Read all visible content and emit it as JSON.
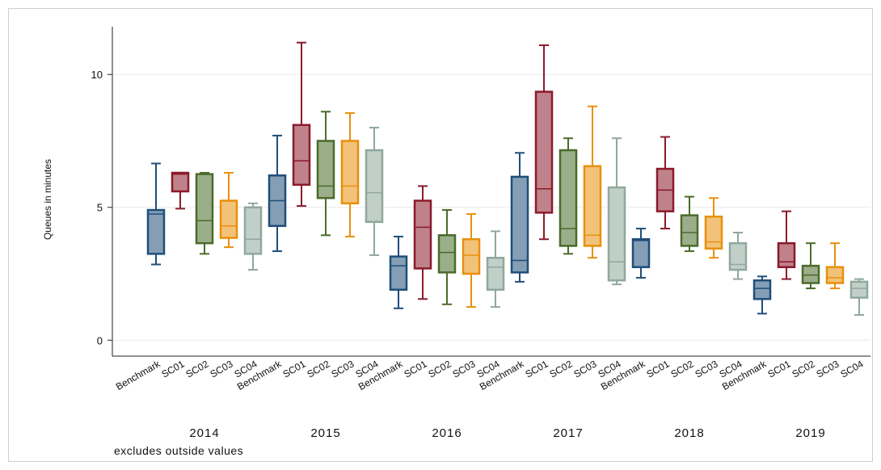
{
  "chart_data": {
    "type": "box",
    "ylabel": "Queues in minutes",
    "note": "excludes outside values",
    "ylim": [
      -0.6,
      11.8
    ],
    "yticks": [
      0,
      5,
      10
    ],
    "grid": true,
    "categories": [
      "Benchmark",
      "SC01",
      "SC02",
      "SC03",
      "SC04"
    ],
    "colors": {
      "Benchmark": "#1f4e79",
      "SC01": "#8b1a2b",
      "SC02": "#4a6b2a",
      "SC03": "#e8900c",
      "SC04": "#8fa89c"
    },
    "groups": [
      {
        "label": "2014",
        "boxes": [
          {
            "name": "Benchmark",
            "min": 2.85,
            "q1": 3.25,
            "median": 4.75,
            "q3": 4.9,
            "max": 6.65
          },
          {
            "name": "SC01",
            "min": 4.95,
            "q1": 5.6,
            "median": 6.25,
            "q3": 6.3,
            "max": 6.3
          },
          {
            "name": "SC02",
            "min": 3.25,
            "q1": 3.65,
            "median": 4.5,
            "q3": 6.25,
            "max": 6.3
          },
          {
            "name": "SC03",
            "min": 3.5,
            "q1": 3.85,
            "median": 4.3,
            "q3": 5.25,
            "max": 6.3
          },
          {
            "name": "SC04",
            "min": 2.65,
            "q1": 3.25,
            "median": 3.8,
            "q3": 5.0,
            "max": 5.15
          }
        ]
      },
      {
        "label": "2015",
        "boxes": [
          {
            "name": "Benchmark",
            "min": 3.35,
            "q1": 4.3,
            "median": 5.25,
            "q3": 6.2,
            "max": 7.7
          },
          {
            "name": "SC01",
            "min": 5.05,
            "q1": 5.85,
            "median": 6.75,
            "q3": 8.1,
            "max": 11.2
          },
          {
            "name": "SC02",
            "min": 3.95,
            "q1": 5.35,
            "median": 5.8,
            "q3": 7.5,
            "max": 8.6
          },
          {
            "name": "SC03",
            "min": 3.9,
            "q1": 5.15,
            "median": 5.8,
            "q3": 7.5,
            "max": 8.55
          },
          {
            "name": "SC04",
            "min": 3.2,
            "q1": 4.45,
            "median": 5.55,
            "q3": 7.15,
            "max": 8.0
          }
        ]
      },
      {
        "label": "2016",
        "boxes": [
          {
            "name": "Benchmark",
            "min": 1.2,
            "q1": 1.9,
            "median": 2.8,
            "q3": 3.15,
            "max": 3.9
          },
          {
            "name": "SC01",
            "min": 1.55,
            "q1": 2.7,
            "median": 4.25,
            "q3": 5.25,
            "max": 5.8
          },
          {
            "name": "SC02",
            "min": 1.35,
            "q1": 2.55,
            "median": 3.3,
            "q3": 3.95,
            "max": 4.9
          },
          {
            "name": "SC03",
            "min": 1.25,
            "q1": 2.5,
            "median": 3.2,
            "q3": 3.8,
            "max": 4.75
          },
          {
            "name": "SC04",
            "min": 1.25,
            "q1": 1.9,
            "median": 2.75,
            "q3": 3.1,
            "max": 4.1
          }
        ]
      },
      {
        "label": "2017",
        "boxes": [
          {
            "name": "Benchmark",
            "min": 2.2,
            "q1": 2.55,
            "median": 3.0,
            "q3": 6.15,
            "max": 7.05
          },
          {
            "name": "SC01",
            "min": 3.8,
            "q1": 4.8,
            "median": 5.7,
            "q3": 9.35,
            "max": 11.1
          },
          {
            "name": "SC02",
            "min": 3.25,
            "q1": 3.55,
            "median": 4.2,
            "q3": 7.15,
            "max": 7.6
          },
          {
            "name": "SC03",
            "min": 3.1,
            "q1": 3.55,
            "median": 3.95,
            "q3": 6.55,
            "max": 8.8
          },
          {
            "name": "SC04",
            "min": 2.1,
            "q1": 2.25,
            "median": 2.95,
            "q3": 5.75,
            "max": 7.6
          }
        ]
      },
      {
        "label": "2018",
        "boxes": [
          {
            "name": "Benchmark",
            "min": 2.35,
            "q1": 2.75,
            "median": 3.75,
            "q3": 3.8,
            "max": 4.2
          },
          {
            "name": "SC01",
            "min": 4.2,
            "q1": 4.85,
            "median": 5.65,
            "q3": 6.45,
            "max": 7.65
          },
          {
            "name": "SC02",
            "min": 3.35,
            "q1": 3.55,
            "median": 4.05,
            "q3": 4.7,
            "max": 5.4
          },
          {
            "name": "SC03",
            "min": 3.1,
            "q1": 3.45,
            "median": 3.7,
            "q3": 4.65,
            "max": 5.35
          },
          {
            "name": "SC04",
            "min": 2.3,
            "q1": 2.65,
            "median": 2.85,
            "q3": 3.65,
            "max": 4.05
          }
        ]
      },
      {
        "label": "2019",
        "boxes": [
          {
            "name": "Benchmark",
            "min": 1.0,
            "q1": 1.55,
            "median": 1.95,
            "q3": 2.25,
            "max": 2.4
          },
          {
            "name": "SC01",
            "min": 2.3,
            "q1": 2.75,
            "median": 2.95,
            "q3": 3.65,
            "max": 4.85
          },
          {
            "name": "SC02",
            "min": 1.95,
            "q1": 2.15,
            "median": 2.45,
            "q3": 2.8,
            "max": 3.65
          },
          {
            "name": "SC03",
            "min": 1.95,
            "q1": 2.15,
            "median": 2.35,
            "q3": 2.75,
            "max": 3.65
          },
          {
            "name": "SC04",
            "min": 0.95,
            "q1": 1.6,
            "median": 1.95,
            "q3": 2.2,
            "max": 2.3
          }
        ]
      }
    ]
  }
}
